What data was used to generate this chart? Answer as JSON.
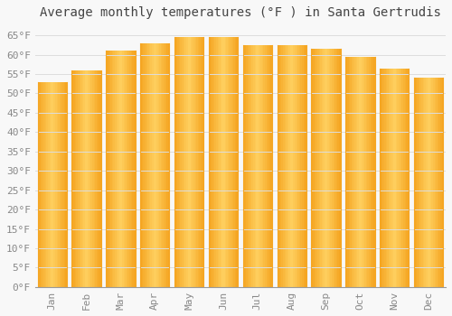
{
  "title": "Average monthly temperatures (°F ) in Santa Gertrudis",
  "months": [
    "Jan",
    "Feb",
    "Mar",
    "Apr",
    "May",
    "Jun",
    "Jul",
    "Aug",
    "Sep",
    "Oct",
    "Nov",
    "Dec"
  ],
  "values": [
    53,
    56,
    61,
    63,
    64.5,
    64.5,
    62.5,
    62.5,
    61.5,
    59.5,
    56.5,
    54
  ],
  "bar_color_dark": "#F5A623",
  "bar_color_light": "#FFD060",
  "ylim": [
    0,
    68
  ],
  "yticks": [
    0,
    5,
    10,
    15,
    20,
    25,
    30,
    35,
    40,
    45,
    50,
    55,
    60,
    65
  ],
  "background_color": "#F8F8F8",
  "grid_color": "#DDDDDD",
  "title_fontsize": 10,
  "tick_fontsize": 8,
  "font_family": "monospace"
}
